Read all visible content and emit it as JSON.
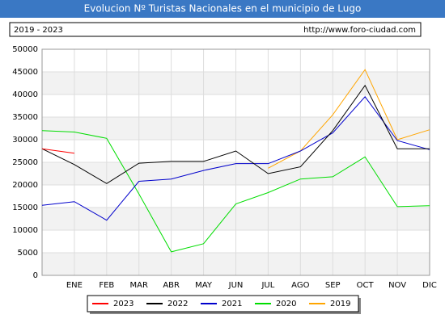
{
  "chart_data": {
    "type": "line",
    "title": "Evolucion Nº Turistas Nacionales en el municipio de Lugo",
    "subtitle": "2019 - 2023",
    "url": "http://www.foro-ciudad.com",
    "categories": [
      null,
      "ENE",
      "FEB",
      "MAR",
      "ABR",
      "MAY",
      "JUN",
      "JUL",
      "AGO",
      "SEP",
      "OCT",
      "NOV",
      "DIC"
    ],
    "series": [
      {
        "name": "2023",
        "color": "#ff0000",
        "values": [
          28000,
          27000,
          null,
          null,
          null,
          null,
          null,
          null,
          null,
          null,
          null,
          null,
          null
        ]
      },
      {
        "name": "2022",
        "color": "#000000",
        "values": [
          28000,
          24500,
          20300,
          24800,
          25200,
          25200,
          27500,
          22500,
          24000,
          32000,
          42000,
          28000,
          28000
        ]
      },
      {
        "name": "2021",
        "color": "#0000cc",
        "values": [
          15500,
          16300,
          12200,
          20800,
          21300,
          23200,
          24700,
          24700,
          27500,
          31500,
          39500,
          29800,
          27800
        ]
      },
      {
        "name": "2020",
        "color": "#00dd00",
        "values": [
          32000,
          31700,
          30300,
          18000,
          5200,
          7000,
          15800,
          18300,
          21300,
          21800,
          26200,
          15200,
          15400
        ]
      },
      {
        "name": "2019",
        "color": "#ffa500",
        "values": [
          null,
          null,
          null,
          null,
          null,
          null,
          null,
          23700,
          27500,
          35500,
          45500,
          30000,
          32200
        ]
      }
    ],
    "ylim": [
      0,
      50000
    ],
    "yticks": [
      0,
      5000,
      10000,
      15000,
      20000,
      25000,
      30000,
      35000,
      40000,
      45000,
      50000
    ],
    "grid": true,
    "legend": "bottom"
  }
}
